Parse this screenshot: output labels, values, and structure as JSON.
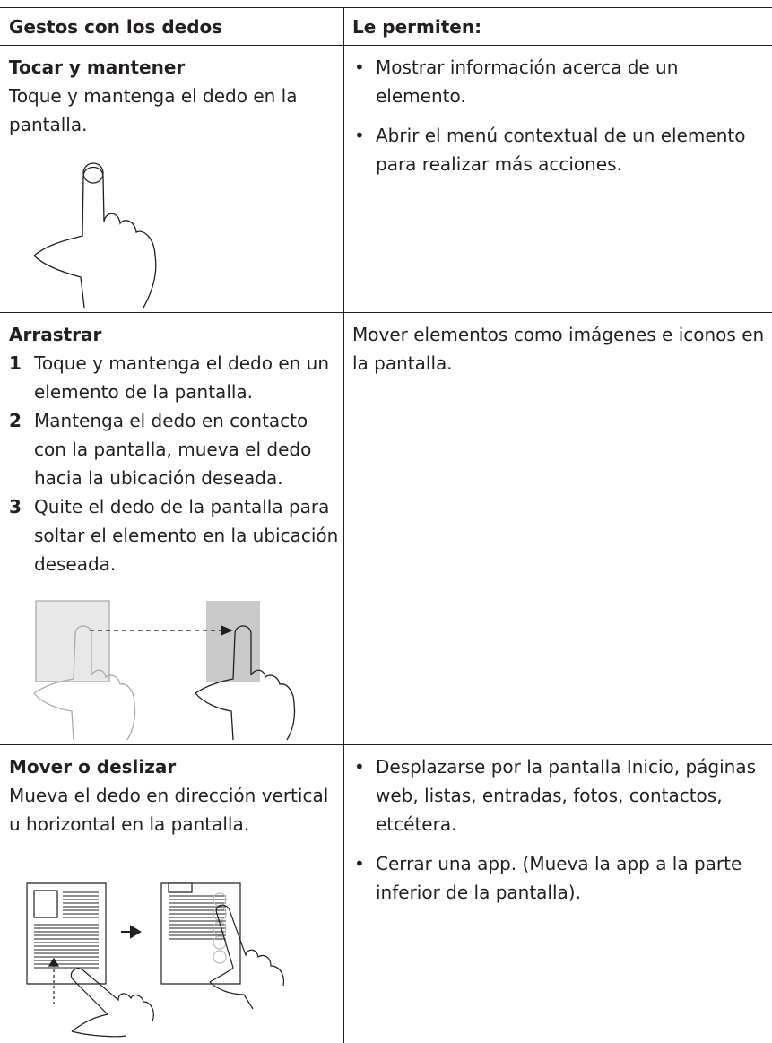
{
  "table": {
    "headers": [
      "Gestos con los dedos",
      "Le permiten:"
    ],
    "rows": [
      {
        "title": "Tocar y mantener",
        "description": "Toque y mantenga el dedo en la pantalla.",
        "uses": [
          "Mostrar información acerca de un elemento.",
          "Abrir el menú contextual de un elemento para realizar más acciones."
        ]
      },
      {
        "title": "Arrastrar",
        "steps": [
          {
            "number": 1,
            "text": "Toque y mantenga el dedo en un elemento de la pantalla."
          },
          {
            "number": 2,
            "text": "Mantenga el dedo en contacto con la pantalla, mueva el dedo hacia la ubicación deseada."
          },
          {
            "number": 3,
            "text": "Quite el dedo de la pantalla para soltar el elemento en la ubicación deseada."
          }
        ],
        "use": "Mover elementos como imágenes e iconos en la pantalla."
      },
      {
        "title": "Mover o deslizar",
        "description": "Mueva el dedo en dirección vertical u horizontal en la pantalla.",
        "uses": [
          "Desplazarse por la pantalla Inicio, páginas web, listas, entradas, fotos, contactos, etcétera.",
          "Cerrar una app. (Mueva la app a la parte inferior de la pantalla)."
        ]
      }
    ]
  }
}
